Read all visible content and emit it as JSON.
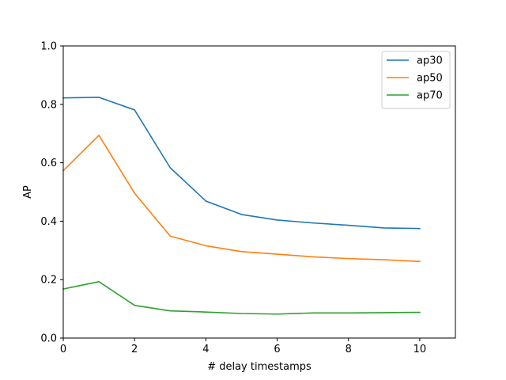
{
  "chart_data": {
    "type": "line",
    "title": "",
    "xlabel": "# delay timestamps",
    "ylabel": "AP",
    "xlim": [
      0,
      11
    ],
    "ylim": [
      0,
      1.0
    ],
    "xticks": [
      0,
      2,
      4,
      6,
      8,
      10
    ],
    "xtick_labels": [
      "0",
      "2",
      "4",
      "6",
      "8",
      "10"
    ],
    "yticks": [
      0,
      0.2,
      0.4,
      0.6,
      0.8,
      1.0
    ],
    "ytick_labels": [
      "0.0",
      "0.2",
      "0.4",
      "0.6",
      "0.8",
      "1.0"
    ],
    "grid": false,
    "legend_position": "top-right",
    "x": [
      0,
      1,
      2,
      3,
      4,
      5,
      6,
      7,
      8,
      9,
      10
    ],
    "series": [
      {
        "name": "ap30",
        "color": "#1f77b4",
        "values": [
          0.822,
          0.824,
          0.781,
          0.583,
          0.469,
          0.423,
          0.404,
          0.394,
          0.386,
          0.377,
          0.375
        ]
      },
      {
        "name": "ap50",
        "color": "#ff7f0e",
        "values": [
          0.573,
          0.694,
          0.496,
          0.349,
          0.316,
          0.296,
          0.287,
          0.278,
          0.272,
          0.268,
          0.262
        ]
      },
      {
        "name": "ap70",
        "color": "#2ca02c",
        "values": [
          0.168,
          0.193,
          0.112,
          0.093,
          0.089,
          0.084,
          0.082,
          0.086,
          0.086,
          0.087,
          0.088
        ]
      }
    ]
  }
}
